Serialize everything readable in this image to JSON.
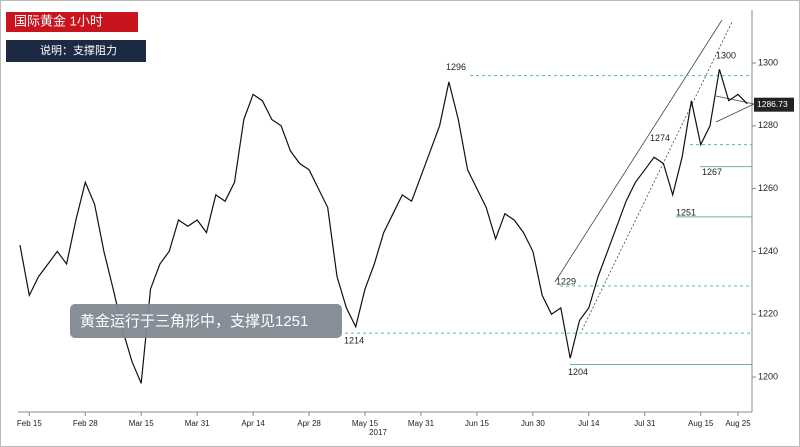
{
  "chart_data": {
    "type": "line",
    "title": "国际黄金  1小时",
    "subtitle": "说明：支撑阻力",
    "annotation": "黄金运行于三角形中，支撑见1251",
    "x_sublabel": "2017",
    "categories": [
      null,
      "Feb 15",
      null,
      null,
      null,
      null,
      null,
      "Feb 28",
      null,
      null,
      null,
      null,
      null,
      "Mar 15",
      null,
      null,
      null,
      null,
      null,
      "Mar 31",
      null,
      null,
      null,
      null,
      null,
      "Apr 14",
      null,
      null,
      null,
      null,
      null,
      "Apr 28",
      null,
      null,
      null,
      null,
      null,
      "May 15",
      null,
      null,
      null,
      null,
      null,
      "May 31",
      null,
      null,
      null,
      null,
      null,
      "Jun 15",
      null,
      null,
      null,
      null,
      null,
      "Jun 30",
      null,
      null,
      null,
      null,
      null,
      "Jul 14",
      null,
      null,
      null,
      null,
      null,
      "Jul 31",
      null,
      null,
      null,
      null,
      null,
      "Aug 15",
      null,
      null,
      null,
      "Aug 25",
      null
    ],
    "values": [
      1242,
      1226,
      1232,
      1236,
      1240,
      1236,
      1250,
      1262,
      1255,
      1240,
      1228,
      1215,
      1205,
      1198,
      1228,
      1236,
      1240,
      1250,
      1248,
      1250,
      1246,
      1258,
      1256,
      1262,
      1282,
      1290,
      1288,
      1282,
      1280,
      1272,
      1268,
      1266,
      1260,
      1254,
      1232,
      1222,
      1216,
      1228,
      1236,
      1246,
      1252,
      1258,
      1256,
      1264,
      1272,
      1280,
      1294,
      1282,
      1266,
      1260,
      1254,
      1244,
      1252,
      1250,
      1246,
      1240,
      1226,
      1220,
      1222,
      1206,
      1218,
      1222,
      1232,
      1240,
      1248,
      1256,
      1262,
      1266,
      1270,
      1268,
      1258,
      1270,
      1288,
      1274,
      1280,
      1298,
      1288,
      1290,
      1287
    ],
    "color": "#111111",
    "ylim": [
      1189.5,
      1313.7
    ],
    "yticks": [
      1200,
      1220,
      1240,
      1260,
      1280,
      1300
    ],
    "levels": [
      1296,
      1300,
      1274,
      1267,
      1251,
      1229,
      1214,
      1204
    ],
    "level_color": "#5cb8a8",
    "last_price": 1286.73
  }
}
